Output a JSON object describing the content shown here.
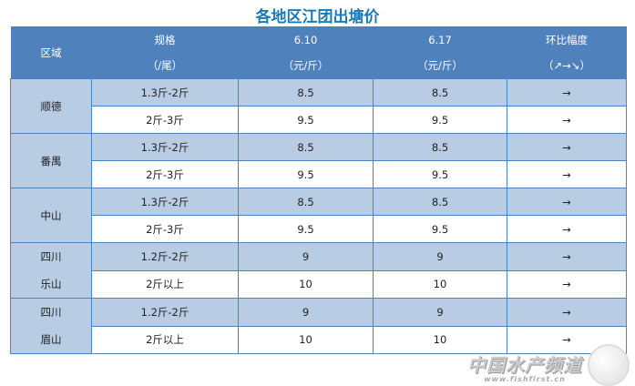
{
  "title": "各地区江团出塘价",
  "header": {
    "region": "区域",
    "spec": [
      "规格",
      "（/尾）"
    ],
    "d1": [
      "6.10",
      "（元/斤）"
    ],
    "d2": [
      "6.17",
      "（元/斤）"
    ],
    "change": [
      "环比幅度",
      "（↗→↘）"
    ]
  },
  "groups": [
    {
      "region": [
        "顺德"
      ],
      "rows": [
        {
          "spec": "1.3斤-2斤",
          "p1": "8.5",
          "p2": "8.5",
          "chg": "→"
        },
        {
          "spec": "2斤-3斤",
          "p1": "9.5",
          "p2": "9.5",
          "chg": "→"
        }
      ]
    },
    {
      "region": [
        "番禺"
      ],
      "rows": [
        {
          "spec": "1.3斤-2斤",
          "p1": "8.5",
          "p2": "8.5",
          "chg": "→"
        },
        {
          "spec": "2斤-3斤",
          "p1": "9.5",
          "p2": "9.5",
          "chg": "→"
        }
      ]
    },
    {
      "region": [
        "中山"
      ],
      "rows": [
        {
          "spec": "1.3斤-2斤",
          "p1": "8.5",
          "p2": "8.5",
          "chg": "→"
        },
        {
          "spec": "2斤-3斤",
          "p1": "9.5",
          "p2": "9.5",
          "chg": "→"
        }
      ]
    },
    {
      "region": [
        "四川",
        "乐山"
      ],
      "rows": [
        {
          "spec": "1.2斤-2斤",
          "p1": "9",
          "p2": "9",
          "chg": "→"
        },
        {
          "spec": "2斤以上",
          "p1": "10",
          "p2": "10",
          "chg": "→"
        }
      ]
    },
    {
      "region": [
        "四川",
        "眉山"
      ],
      "rows": [
        {
          "spec": "1.2斤-2斤",
          "p1": "9",
          "p2": "9",
          "chg": "→"
        },
        {
          "spec": "2斤以上",
          "p1": "10",
          "p2": "10",
          "chg": "→"
        }
      ]
    }
  ],
  "watermark": {
    "text": "中国水产频道",
    "url": "www.fishfirst.cn"
  },
  "colors": {
    "header": "#4f81bd",
    "row_alt": "#b8cce4",
    "title": "#1a7ab5"
  }
}
